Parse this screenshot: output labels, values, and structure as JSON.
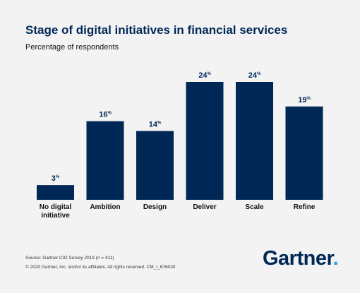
{
  "chart_data": {
    "type": "bar",
    "title": "Stage of digital initiatives in financial services",
    "subtitle": "Percentage of respondents",
    "categories": [
      "No digital initiative",
      "Ambition",
      "Design",
      "Deliver",
      "Scale",
      "Refine"
    ],
    "category_lines": [
      [
        "No digital",
        "initiative"
      ],
      [
        "Ambition"
      ],
      [
        "Design"
      ],
      [
        "Deliver"
      ],
      [
        "Scale"
      ],
      [
        "Refine"
      ]
    ],
    "values": [
      3,
      16,
      14,
      24,
      24,
      19
    ],
    "value_labels": [
      "3",
      "16",
      "14",
      "24",
      "24",
      "19"
    ],
    "unit_suffix": "%",
    "ylim": [
      0,
      24
    ],
    "bar_color": "#002856",
    "grid": false
  },
  "footer": {
    "source": "Source: Gartner CIO Survey 2019 (n = 411)",
    "copyright": "© 2020 Gartner, Inc. and/or its affiliates. All rights reserved. CM_I_676030"
  },
  "logo": {
    "text": "Gartner",
    "dot": ".",
    "accent_color": "#1aa0dc"
  }
}
